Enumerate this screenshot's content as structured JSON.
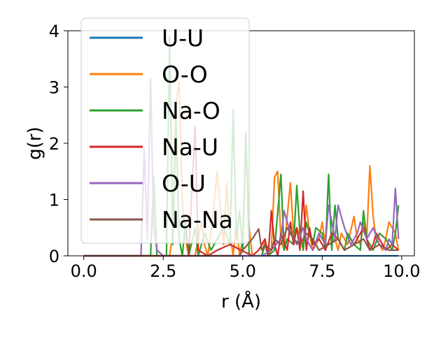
{
  "chart_data": {
    "type": "line",
    "title": "",
    "xlabel": "r (Å)",
    "ylabel": "g(r)",
    "xlim": [
      -0.5,
      10.4
    ],
    "ylim": [
      0,
      4.0
    ],
    "xticks": [
      0.0,
      2.5,
      5.0,
      7.5,
      10.0
    ],
    "xtick_labels": [
      "0.0",
      "2.5",
      "5.0",
      "7.5",
      "10.0"
    ],
    "yticks": [
      0,
      1,
      2,
      3,
      4
    ],
    "ytick_labels": [
      "0",
      "1",
      "2",
      "3",
      "4"
    ],
    "grid": false,
    "legend": "upper-left",
    "series": [
      {
        "name": "U-U",
        "color": "#1f77b4",
        "x": [
          0.0,
          2.0,
          4.0,
          5.0,
          6.0,
          7.0,
          8.0,
          9.0,
          9.9
        ],
        "y": [
          0,
          0,
          0,
          0,
          0,
          0,
          0,
          0,
          0
        ]
      },
      {
        "name": "O-O",
        "color": "#ff7f0e",
        "x": [
          0.0,
          2.7,
          2.8,
          2.9,
          3.0,
          3.1,
          3.2,
          3.3,
          3.5,
          3.7,
          3.8,
          3.9,
          4.0,
          4.2,
          4.3,
          4.4,
          4.5,
          4.6,
          4.7,
          4.8,
          4.9,
          5.0,
          5.1,
          5.2,
          5.3,
          5.6,
          5.7,
          5.8,
          5.9,
          6.0,
          6.1,
          6.2,
          6.3,
          6.4,
          6.5,
          6.6,
          6.7,
          6.9,
          7.0,
          7.1,
          7.2,
          7.4,
          7.5,
          7.6,
          7.7,
          7.9,
          8.0,
          8.1,
          8.3,
          8.5,
          8.6,
          8.7,
          8.8,
          8.9,
          9.0,
          9.1,
          9.2,
          9.3,
          9.4,
          9.5,
          9.6,
          9.7,
          9.8,
          9.9
        ],
        "y": [
          0,
          0,
          0.4,
          2.7,
          3.1,
          1.0,
          0.3,
          0,
          0,
          0.6,
          0.2,
          0,
          0.4,
          1.5,
          0.8,
          0.2,
          1.3,
          0.4,
          0,
          0.6,
          0,
          0.3,
          2.1,
          0.5,
          0,
          0,
          0.3,
          0,
          0.1,
          1.4,
          1.5,
          0.3,
          0.1,
          0.7,
          1.3,
          0.4,
          0.5,
          0.2,
          0.9,
          0.4,
          0.1,
          0.3,
          0.6,
          0.2,
          0.2,
          0.3,
          0.1,
          0.4,
          0.2,
          0.7,
          0.3,
          0.2,
          0.6,
          0.3,
          1.6,
          0.7,
          0.3,
          0.2,
          0.1,
          0.3,
          0.6,
          0.5,
          0.4,
          0.1
        ]
      },
      {
        "name": "Na-O",
        "color": "#2ca02c",
        "x": [
          0.0,
          2.1,
          2.2,
          2.3,
          2.6,
          2.7,
          2.8,
          2.9,
          3.0,
          3.1,
          3.2,
          3.3,
          3.5,
          3.6,
          3.8,
          4.0,
          4.2,
          4.4,
          4.6,
          4.7,
          4.8,
          4.9,
          5.0,
          5.1,
          5.2,
          5.6,
          5.7,
          5.8,
          6.0,
          6.2,
          6.3,
          6.4,
          6.6,
          6.7,
          6.8,
          6.9,
          7.0,
          7.2,
          7.3,
          7.5,
          7.6,
          7.7,
          7.8,
          7.9,
          8.0,
          8.2,
          8.3,
          8.5,
          8.7,
          8.8,
          8.9,
          9.1,
          9.3,
          9.5,
          9.7,
          9.8,
          9.9
        ],
        "y": [
          0,
          0,
          1.4,
          0,
          0,
          3.9,
          0.2,
          2.4,
          0.3,
          0,
          0.6,
          0,
          0.5,
          0,
          0.4,
          0.1,
          0.3,
          0.5,
          0.2,
          2.6,
          0.3,
          0.8,
          0.1,
          2.2,
          0,
          0,
          0.2,
          0,
          0.1,
          1.45,
          0.1,
          0.3,
          0.2,
          1.25,
          0.4,
          0.1,
          0.6,
          0.2,
          0.5,
          0.4,
          0.1,
          1.45,
          0.1,
          0.9,
          0.3,
          0.1,
          0.4,
          0.2,
          0.1,
          0.8,
          0.3,
          0.1,
          0.4,
          0.3,
          0.1,
          0.4,
          0.9
        ]
      },
      {
        "name": "Na-U",
        "color": "#d62728",
        "x": [
          0.0,
          3.3,
          3.5,
          3.6,
          3.9,
          4.2,
          4.6,
          5.3,
          5.5,
          5.7,
          5.8,
          5.9,
          6.0,
          6.1,
          6.2,
          6.4,
          6.5,
          6.6,
          6.7,
          6.8,
          6.9,
          7.0,
          7.1,
          7.2,
          7.4,
          7.6,
          7.8,
          8.0,
          8.2,
          8.5,
          8.8,
          9.0,
          9.1,
          9.2,
          9.3,
          9.5,
          9.7,
          9.9
        ],
        "y": [
          0,
          0,
          2.3,
          0.1,
          0,
          0.1,
          0.2,
          0,
          0.1,
          0.3,
          0,
          0.8,
          0.2,
          0,
          0.4,
          0.1,
          0.6,
          0.2,
          0.5,
          0.1,
          1.15,
          0.1,
          0.5,
          0.2,
          0.3,
          0.1,
          0.4,
          0.3,
          0.1,
          0.2,
          0.5,
          0.1,
          0.2,
          0.4,
          0.3,
          0.1,
          0.2,
          0.1
        ]
      },
      {
        "name": "O-U",
        "color": "#9467bd",
        "x": [
          0.0,
          1.8,
          1.9,
          2.0,
          2.1,
          2.2,
          2.3,
          2.5,
          2.7,
          3.0,
          4.4,
          4.8,
          5.3,
          5.6,
          5.9,
          6.2,
          6.3,
          6.5,
          6.7,
          6.9,
          7.0,
          7.2,
          7.4,
          7.6,
          7.7,
          7.9,
          8.0,
          8.2,
          8.4,
          8.6,
          8.7,
          8.9,
          9.1,
          9.3,
          9.5,
          9.6,
          9.7,
          9.8,
          9.9
        ],
        "y": [
          0,
          0,
          1.9,
          0.3,
          3.15,
          0.5,
          0.1,
          0,
          0,
          0,
          0,
          0,
          0,
          0,
          0.1,
          0.3,
          0.8,
          0.4,
          0.2,
          0.5,
          0.3,
          0.1,
          0.4,
          0.2,
          0.9,
          0.3,
          0.9,
          0.5,
          0.2,
          0.4,
          0.6,
          0.3,
          0.5,
          0.2,
          0.1,
          0.3,
          0.2,
          1.2,
          0.3
        ]
      },
      {
        "name": "Na-Na",
        "color": "#8c564b",
        "x": [
          0.0,
          4.9,
          5.0,
          5.3,
          5.5,
          5.6,
          5.7,
          5.9,
          6.0,
          6.2,
          6.4,
          6.6,
          6.8,
          7.0,
          7.2,
          7.4,
          7.7,
          8.0,
          8.2,
          8.5,
          8.8,
          9.0,
          9.3,
          9.6,
          9.9
        ],
        "y": [
          0,
          0,
          0.1,
          0.3,
          0.48,
          0.1,
          0.2,
          0.1,
          0.3,
          0.2,
          0.5,
          0.3,
          0.2,
          0.4,
          0.3,
          0.1,
          0.2,
          0.3,
          0.1,
          0.2,
          0.3,
          0.1,
          0.2,
          0.1,
          0.1
        ]
      }
    ]
  }
}
